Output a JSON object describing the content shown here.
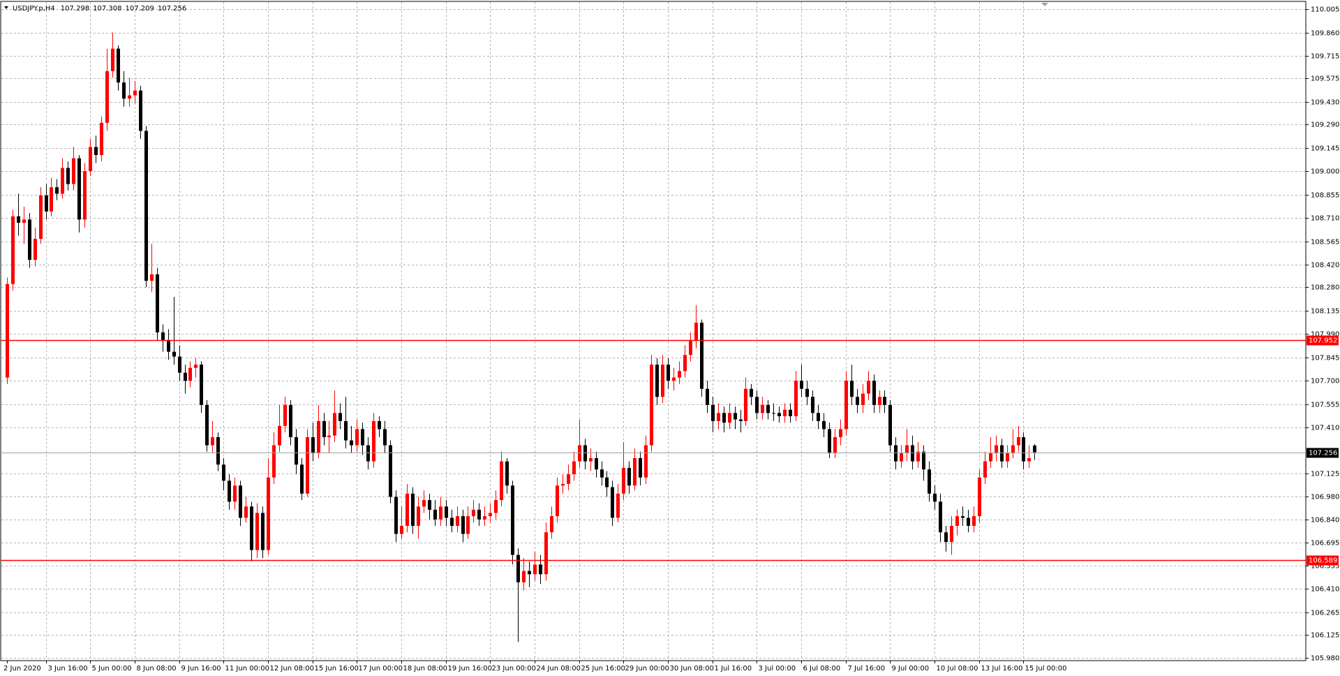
{
  "chart_data": {
    "type": "candlestick",
    "title": "USDJPY.p,H4",
    "up_color": "#ff0000",
    "down_color": "#000000",
    "grid": true,
    "ylim": [
      105.964,
      110.053
    ],
    "yticks": [
      110.005,
      {
        "value": 109.86,
        "label": "109.860"
      },
      109.715,
      109.575,
      {
        "value": 109.43,
        "label": "109.430"
      },
      {
        "value": 109.29,
        "label": "109.290"
      },
      109.145,
      {
        "value": 109,
        "label": "109.000"
      },
      108.855,
      {
        "value": 108.71,
        "label": "108.710"
      },
      108.565,
      {
        "value": 108.42,
        "label": "108.420"
      },
      {
        "value": 108.28,
        "label": "108.280"
      },
      108.135,
      {
        "value": 107.99,
        "label": "107.990"
      },
      107.845,
      {
        "value": 107.7,
        "label": "107.700"
      },
      107.555,
      {
        "value": 107.41,
        "label": "107.410"
      },
      107.125,
      {
        "value": 106.98,
        "label": "106.980"
      },
      {
        "value": 106.84,
        "label": "106.840"
      },
      106.695,
      106.555,
      {
        "value": 106.41,
        "label": "106.410"
      },
      106.265,
      106.125,
      {
        "value": 105.98,
        "label": "105.980"
      }
    ],
    "hlines": [
      {
        "value": 107.952,
        "color": "#ff0000"
      },
      {
        "value": 106.589,
        "color": "#ff0000"
      }
    ],
    "categories": [
      "2 Jun 2020",
      null,
      null,
      null,
      null,
      null,
      null,
      "3 Jun 16:00",
      null,
      null,
      null,
      null,
      null,
      null,
      null,
      "5 Jun 00:00",
      null,
      null,
      null,
      null,
      null,
      null,
      null,
      "8 Jun 08:00",
      null,
      null,
      null,
      null,
      null,
      null,
      null,
      "9 Jun 16:00",
      null,
      null,
      null,
      null,
      null,
      null,
      null,
      "11 Jun 00:00",
      null,
      null,
      null,
      null,
      null,
      null,
      null,
      "12 Jun 08:00",
      null,
      null,
      null,
      null,
      null,
      null,
      null,
      "15 Jun 16:00",
      null,
      null,
      null,
      null,
      null,
      null,
      null,
      "17 Jun 00:00",
      null,
      null,
      null,
      null,
      null,
      null,
      null,
      "18 Jun 08:00",
      null,
      null,
      null,
      null,
      null,
      null,
      null,
      "19 Jun 16:00",
      null,
      null,
      null,
      null,
      null,
      null,
      null,
      "23 Jun 00:00",
      null,
      null,
      null,
      null,
      null,
      null,
      null,
      "24 Jun 08:00",
      null,
      null,
      null,
      null,
      null,
      null,
      null,
      "25 Jun 16:00",
      null,
      null,
      null,
      null,
      null,
      null,
      null,
      "29 Jun 00:00",
      null,
      null,
      null,
      null,
      null,
      null,
      null,
      "30 Jun 08:00",
      null,
      null,
      null,
      null,
      null,
      null,
      null,
      "1 Jul 16:00",
      null,
      null,
      null,
      null,
      null,
      null,
      null,
      "3 Jul 00:00",
      null,
      null,
      null,
      null,
      null,
      null,
      null,
      "6 Jul 08:00",
      null,
      null,
      null,
      null,
      null,
      null,
      null,
      "7 Jul 16:00",
      null,
      null,
      null,
      null,
      null,
      null,
      null,
      "9 Jul 00:00",
      null,
      null,
      null,
      null,
      null,
      null,
      null,
      "10 Jul 08:00",
      null,
      null,
      null,
      null,
      null,
      null,
      null,
      "13 Jul 16:00",
      null,
      null,
      null,
      null,
      null,
      null,
      null,
      "15 Jul 00:00",
      null,
      null
    ],
    "open": [
      107.72,
      108.3,
      108.72,
      108.68,
      108.7,
      108.45,
      108.58,
      108.85,
      108.75,
      108.9,
      108.86,
      109.02,
      108.92,
      109.08,
      108.7,
      109.0,
      109.15,
      109.1,
      109.3,
      109.62,
      109.76,
      109.55,
      109.45,
      109.47,
      109.5,
      109.25,
      108.32,
      108.36,
      108.0,
      107.95,
      107.88,
      107.85,
      107.75,
      107.7,
      107.78,
      107.8,
      107.55,
      107.3,
      107.35,
      107.18,
      107.08,
      106.95,
      107.05,
      106.85,
      106.92,
      106.65,
      106.88,
      106.65,
      107.1,
      107.3,
      107.42,
      107.55,
      107.35,
      107.18,
      107.0,
      107.35,
      107.25,
      107.45,
      107.35,
      107.36,
      107.5,
      107.45,
      107.33,
      107.3,
      107.4,
      107.3,
      107.2,
      107.45,
      107.4,
      107.3,
      106.98,
      106.75,
      106.8,
      107.0,
      106.8,
      106.92,
      106.96,
      106.9,
      106.84,
      106.92,
      106.85,
      106.8,
      106.86,
      106.75,
      106.86,
      106.9,
      106.84,
      106.86,
      106.88,
      106.96,
      107.2,
      107.05,
      106.62,
      106.45,
      106.52,
      106.5,
      106.56,
      106.5,
      106.76,
      106.86,
      107.05,
      107.06,
      107.12,
      107.2,
      107.3,
      107.2,
      107.22,
      107.15,
      107.1,
      107.04,
      106.85,
      107.0,
      107.16,
      107.05,
      107.22,
      107.1,
      107.3,
      107.8,
      107.6,
      107.8,
      107.7,
      107.72,
      107.76,
      107.86,
      107.95,
      108.06,
      107.65,
      107.55,
      107.45,
      107.5,
      107.44,
      107.5,
      107.46,
      107.45,
      107.65,
      107.6,
      107.5,
      107.55,
      107.5,
      107.5,
      107.48,
      107.52,
      107.48,
      107.7,
      107.65,
      107.6,
      107.5,
      107.45,
      107.4,
      107.25,
      107.35,
      107.4,
      107.7,
      107.6,
      107.55,
      107.62,
      107.7,
      107.55,
      107.6,
      107.55,
      107.3,
      107.2,
      107.25,
      107.3,
      107.2,
      107.26,
      107.15,
      107.0,
      106.95,
      106.76,
      106.7,
      106.8,
      106.86,
      106.85,
      106.8,
      106.86,
      107.1,
      107.2,
      107.25,
      107.3,
      107.2,
      107.25,
      107.3,
      107.35,
      107.2,
      107.298
    ],
    "high": [
      108.34,
      108.76,
      108.86,
      108.78,
      108.74,
      108.65,
      108.9,
      108.92,
      108.96,
      108.95,
      109.08,
      109.06,
      109.15,
      109.1,
      109.05,
      109.2,
      109.22,
      109.34,
      109.76,
      109.86,
      109.78,
      109.62,
      109.58,
      109.56,
      109.53,
      109.28,
      108.55,
      108.4,
      108.05,
      108.02,
      108.22,
      107.92,
      107.8,
      107.82,
      107.84,
      107.82,
      107.58,
      107.45,
      107.38,
      107.22,
      107.12,
      107.1,
      107.08,
      106.98,
      106.95,
      106.94,
      106.92,
      107.22,
      107.38,
      107.55,
      107.6,
      107.58,
      107.4,
      107.22,
      107.4,
      107.44,
      107.55,
      107.5,
      107.45,
      107.64,
      107.56,
      107.6,
      107.42,
      107.46,
      107.44,
      107.35,
      107.5,
      107.48,
      107.45,
      107.33,
      107.02,
      106.92,
      107.06,
      107.04,
      106.98,
      107.02,
      107.0,
      106.96,
      106.98,
      106.96,
      106.9,
      106.92,
      106.9,
      106.92,
      106.96,
      106.94,
      106.92,
      106.94,
      107.02,
      107.26,
      107.22,
      107.08,
      106.66,
      106.6,
      106.58,
      106.64,
      106.62,
      106.82,
      106.92,
      107.1,
      107.12,
      107.18,
      107.26,
      107.46,
      107.34,
      107.28,
      107.26,
      107.2,
      107.14,
      107.08,
      107.06,
      107.32,
      107.2,
      107.28,
      107.26,
      107.36,
      107.86,
      107.84,
      107.86,
      107.84,
      107.78,
      107.82,
      107.92,
      108.0,
      108.17,
      108.08,
      107.7,
      107.6,
      107.56,
      107.54,
      107.56,
      107.54,
      107.52,
      107.72,
      107.68,
      107.64,
      107.6,
      107.58,
      107.56,
      107.54,
      107.56,
      107.56,
      107.76,
      107.8,
      107.7,
      107.64,
      107.55,
      107.5,
      107.44,
      107.4,
      107.46,
      107.76,
      107.8,
      107.65,
      107.68,
      107.76,
      107.74,
      107.64,
      107.64,
      107.58,
      107.35,
      107.3,
      107.4,
      107.36,
      107.32,
      107.3,
      107.2,
      107.05,
      107.0,
      106.8,
      106.86,
      106.9,
      106.92,
      106.9,
      106.92,
      107.15,
      107.26,
      107.35,
      107.36,
      107.34,
      107.3,
      107.4,
      107.42,
      107.38,
      107.3,
      107.308
    ],
    "low": [
      107.68,
      108.26,
      108.6,
      108.55,
      108.4,
      108.41,
      108.55,
      108.7,
      108.72,
      108.82,
      108.83,
      108.88,
      108.88,
      108.62,
      108.65,
      108.97,
      109.05,
      109.06,
      109.25,
      109.58,
      109.5,
      109.4,
      109.4,
      109.42,
      109.2,
      108.28,
      108.25,
      107.95,
      107.88,
      107.83,
      107.8,
      107.7,
      107.62,
      107.66,
      107.72,
      107.5,
      107.26,
      107.25,
      107.14,
      107.02,
      106.9,
      106.9,
      106.8,
      106.82,
      106.58,
      106.6,
      106.6,
      106.62,
      107.06,
      107.26,
      107.38,
      107.3,
      107.12,
      106.96,
      106.98,
      107.2,
      107.22,
      107.3,
      107.25,
      107.32,
      107.4,
      107.28,
      107.25,
      107.26,
      107.24,
      107.15,
      107.16,
      107.35,
      107.25,
      106.94,
      106.7,
      106.72,
      106.76,
      106.75,
      106.72,
      106.88,
      106.84,
      106.8,
      106.8,
      106.8,
      106.76,
      106.76,
      106.7,
      106.72,
      106.82,
      106.8,
      106.8,
      106.82,
      106.84,
      106.92,
      107.0,
      106.56,
      106.08,
      106.4,
      106.42,
      106.46,
      106.44,
      106.46,
      106.72,
      106.82,
      107.0,
      107.02,
      107.08,
      107.16,
      107.15,
      107.14,
      107.1,
      107.05,
      106.98,
      106.8,
      106.82,
      106.96,
      107.0,
      107.02,
      107.05,
      107.06,
      107.26,
      107.55,
      107.56,
      107.65,
      107.64,
      107.68,
      107.72,
      107.82,
      107.9,
      107.6,
      107.5,
      107.38,
      107.4,
      107.38,
      107.4,
      107.4,
      107.38,
      107.42,
      107.55,
      107.46,
      107.46,
      107.46,
      107.45,
      107.44,
      107.44,
      107.44,
      107.45,
      107.6,
      107.55,
      107.45,
      107.4,
      107.35,
      107.22,
      107.22,
      107.3,
      107.36,
      107.55,
      107.5,
      107.5,
      107.58,
      107.5,
      107.5,
      107.5,
      107.26,
      107.15,
      107.16,
      107.2,
      107.15,
      107.16,
      107.08,
      106.95,
      106.9,
      106.7,
      106.64,
      106.62,
      106.74,
      106.8,
      106.76,
      106.76,
      106.82,
      107.06,
      107.16,
      107.2,
      107.16,
      107.16,
      107.22,
      107.26,
      107.15,
      107.16,
      107.209
    ],
    "close": [
      108.3,
      108.72,
      108.68,
      108.7,
      108.45,
      108.58,
      108.85,
      108.75,
      108.9,
      108.86,
      109.02,
      108.92,
      109.08,
      108.7,
      109.0,
      109.15,
      109.1,
      109.3,
      109.62,
      109.76,
      109.55,
      109.45,
      109.47,
      109.5,
      109.25,
      108.32,
      108.36,
      108.0,
      107.95,
      107.88,
      107.85,
      107.75,
      107.7,
      107.78,
      107.8,
      107.55,
      107.3,
      107.35,
      107.18,
      107.08,
      106.95,
      107.05,
      106.85,
      106.92,
      106.65,
      106.88,
      106.65,
      107.1,
      107.3,
      107.42,
      107.55,
      107.35,
      107.18,
      107.0,
      107.35,
      107.25,
      107.45,
      107.35,
      107.36,
      107.5,
      107.45,
      107.33,
      107.3,
      107.4,
      107.3,
      107.2,
      107.45,
      107.4,
      107.3,
      106.98,
      106.75,
      106.8,
      107.0,
      106.8,
      106.92,
      106.96,
      106.9,
      106.84,
      106.92,
      106.85,
      106.8,
      106.86,
      106.75,
      106.86,
      106.9,
      106.84,
      106.86,
      106.88,
      106.96,
      107.2,
      107.05,
      106.62,
      106.45,
      106.52,
      106.5,
      106.56,
      106.5,
      106.76,
      106.86,
      107.05,
      107.06,
      107.12,
      107.2,
      107.3,
      107.2,
      107.22,
      107.15,
      107.1,
      107.04,
      106.85,
      107.0,
      107.16,
      107.05,
      107.22,
      107.1,
      107.3,
      107.8,
      107.6,
      107.8,
      107.7,
      107.72,
      107.76,
      107.86,
      107.95,
      108.06,
      107.65,
      107.55,
      107.45,
      107.5,
      107.44,
      107.5,
      107.46,
      107.45,
      107.65,
      107.6,
      107.5,
      107.55,
      107.5,
      107.5,
      107.48,
      107.52,
      107.48,
      107.7,
      107.65,
      107.6,
      107.5,
      107.45,
      107.4,
      107.25,
      107.35,
      107.4,
      107.7,
      107.6,
      107.55,
      107.62,
      107.7,
      107.55,
      107.6,
      107.55,
      107.3,
      107.2,
      107.25,
      107.3,
      107.2,
      107.26,
      107.15,
      107.0,
      106.95,
      106.76,
      106.7,
      106.8,
      106.86,
      106.85,
      106.8,
      106.86,
      107.1,
      107.2,
      107.25,
      107.3,
      107.2,
      107.25,
      107.3,
      107.35,
      107.2,
      107.22,
      107.256
    ]
  }
}
